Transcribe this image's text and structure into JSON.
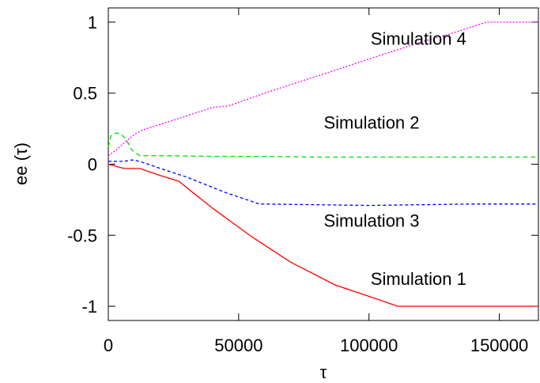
{
  "chart_data": {
    "type": "line",
    "title": "",
    "xlabel": "τ",
    "ylabel": "ee (τ)",
    "xlim": [
      0,
      165000
    ],
    "ylim": [
      -1.1,
      1.1
    ],
    "xticks": [
      0,
      50000,
      100000,
      150000
    ],
    "xtick_labels": [
      "0",
      "50000",
      "100000",
      "150000"
    ],
    "yticks": [
      -1,
      -0.5,
      0,
      0.5,
      1
    ],
    "ytick_labels": [
      "-1",
      "-0.5",
      "0",
      "0.5",
      "1"
    ],
    "grid": false,
    "series": [
      {
        "name": "Simulation 1",
        "color": "#ff0000",
        "dash": "solid",
        "x": [
          0,
          2000,
          4000,
          6000,
          8000,
          12000,
          20000,
          27000,
          40000,
          55000,
          70000,
          87000,
          100000,
          111000,
          130000,
          150000,
          165000
        ],
        "y": [
          0,
          -0.01,
          -0.02,
          -0.03,
          -0.03,
          -0.03,
          -0.08,
          -0.12,
          -0.31,
          -0.51,
          -0.69,
          -0.85,
          -0.93,
          -1.0,
          -1.0,
          -1.0,
          -1.0
        ]
      },
      {
        "name": "Simulation 2",
        "color": "#00dd00",
        "dash": "6 4",
        "x": [
          0,
          1000,
          3000,
          5000,
          7000,
          9000,
          12000,
          20000,
          40000,
          60000,
          80000,
          100000,
          120000,
          140000,
          165000
        ],
        "y": [
          0.12,
          0.2,
          0.22,
          0.21,
          0.17,
          0.1,
          0.06,
          0.06,
          0.055,
          0.055,
          0.05,
          0.05,
          0.05,
          0.05,
          0.05
        ]
      },
      {
        "name": "Simulation 3",
        "color": "#0000ff",
        "dash": "4 3",
        "x": [
          0,
          3000,
          6000,
          9000,
          12000,
          20000,
          30000,
          45000,
          58000,
          80000,
          100000,
          120000,
          140000,
          165000
        ],
        "y": [
          0.02,
          0.02,
          0.02,
          0.03,
          0.02,
          -0.03,
          -0.09,
          -0.2,
          -0.28,
          -0.285,
          -0.29,
          -0.285,
          -0.28,
          -0.28
        ]
      },
      {
        "name": "Simulation 4",
        "color": "#ff00ff",
        "dash": "2 2",
        "x": [
          0,
          3000,
          6000,
          10000,
          13000,
          25000,
          40000,
          46000,
          60000,
          80000,
          100000,
          120000,
          130000,
          145000,
          155000,
          165000
        ],
        "y": [
          0.06,
          0.1,
          0.15,
          0.21,
          0.24,
          0.31,
          0.4,
          0.41,
          0.5,
          0.62,
          0.74,
          0.86,
          0.91,
          1.0,
          1.0,
          1.0
        ]
      }
    ],
    "annotations": [
      {
        "text": "Simulation 4",
        "x": 119000,
        "y": 0.84
      },
      {
        "text": "Simulation 2",
        "x": 101000,
        "y": 0.25
      },
      {
        "text": "Simulation 3",
        "x": 101000,
        "y": -0.44
      },
      {
        "text": "Simulation 1",
        "x": 119000,
        "y": -0.85
      }
    ]
  }
}
